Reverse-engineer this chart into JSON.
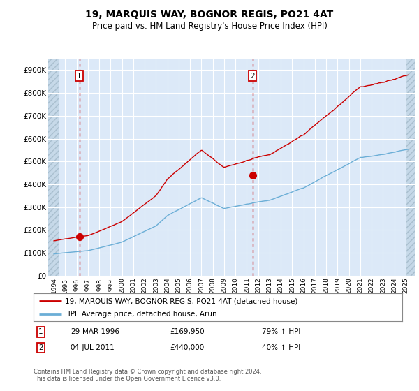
{
  "title": "19, MARQUIS WAY, BOGNOR REGIS, PO21 4AT",
  "subtitle": "Price paid vs. HM Land Registry's House Price Index (HPI)",
  "background_color": "#dce9f8",
  "grid_color": "#ffffff",
  "sale1_x": 1996.24,
  "sale1_price": 169950,
  "sale2_x": 2011.5,
  "sale2_price": 440000,
  "legend_line1": "19, MARQUIS WAY, BOGNOR REGIS, PO21 4AT (detached house)",
  "legend_line2": "HPI: Average price, detached house, Arun",
  "footnote": "Contains HM Land Registry data © Crown copyright and database right 2024.\nThis data is licensed under the Open Government Licence v3.0.",
  "ylim": [
    0,
    950000
  ],
  "xlim_start": 1993.5,
  "xlim_end": 2025.8,
  "yticks": [
    0,
    100000,
    200000,
    300000,
    400000,
    500000,
    600000,
    700000,
    800000,
    900000
  ],
  "ytick_labels": [
    "£0",
    "£100K",
    "£200K",
    "£300K",
    "£400K",
    "£500K",
    "£600K",
    "£700K",
    "£800K",
    "£900K"
  ],
  "xticks": [
    1994,
    1995,
    1996,
    1997,
    1998,
    1999,
    2000,
    2001,
    2002,
    2003,
    2004,
    2005,
    2006,
    2007,
    2008,
    2009,
    2010,
    2011,
    2012,
    2013,
    2014,
    2015,
    2016,
    2017,
    2018,
    2019,
    2020,
    2021,
    2022,
    2023,
    2024,
    2025
  ],
  "hpi_color": "#6baed6",
  "price_color": "#cc0000",
  "hatch_left_end": 1994.5,
  "hatch_right_start": 2025.0
}
